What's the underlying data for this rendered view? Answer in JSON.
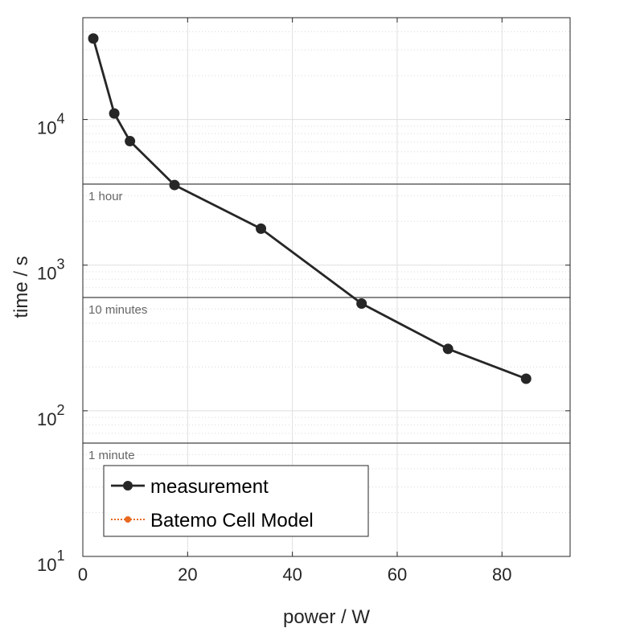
{
  "chart_data": {
    "type": "line",
    "xlabel": "power / W",
    "ylabel": "time / s",
    "xlim": [
      0,
      93
    ],
    "ylim": [
      10,
      50000
    ],
    "y_scale": "log",
    "grid": true,
    "minor_grid": true,
    "legend_placement": "bottom-left",
    "x_ticks": [
      {
        "value": 0,
        "label": "0"
      },
      {
        "value": 20,
        "label": "20"
      },
      {
        "value": 40,
        "label": "40"
      },
      {
        "value": 60,
        "label": "60"
      },
      {
        "value": 80,
        "label": "80"
      }
    ],
    "y_ticks": [
      {
        "value": 10,
        "base": "10",
        "exp": "1"
      },
      {
        "value": 100,
        "base": "10",
        "exp": "2"
      },
      {
        "value": 1000,
        "base": "10",
        "exp": "3"
      },
      {
        "value": 10000,
        "base": "10",
        "exp": "4"
      }
    ],
    "reference_lines": [
      {
        "value": 3600,
        "label": "1 hour"
      },
      {
        "value": 600,
        "label": "10 minutes"
      },
      {
        "value": 60,
        "label": "1 minute"
      }
    ],
    "series": [
      {
        "name": "measurement",
        "color": "#262626",
        "marker": "circle",
        "x": [
          2,
          6,
          9,
          17.5,
          34,
          53.2,
          69.7,
          84.6
        ],
        "y": [
          36000,
          11000,
          7100,
          3550,
          1780,
          545,
          266,
          166
        ]
      },
      {
        "name": "Batemo Cell Model",
        "color": "#e8691f",
        "marker": "circle",
        "line_style": "dotted",
        "x": [],
        "y": []
      }
    ]
  }
}
